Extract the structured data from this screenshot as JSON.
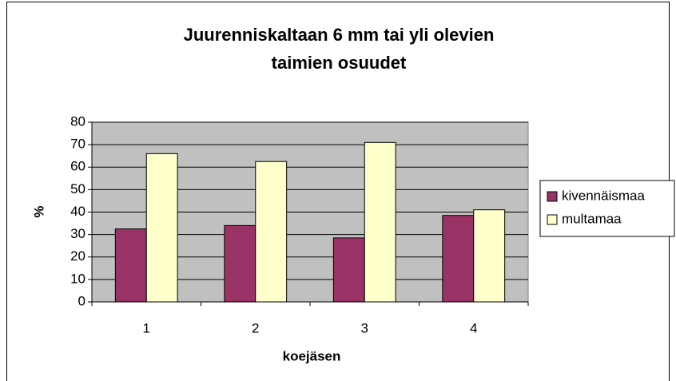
{
  "chart_data": {
    "type": "bar",
    "title": [
      "Juurenniskaltaan 6 mm tai yli olevien",
      "taimien osuudet"
    ],
    "x_label": "koejäsen",
    "y_label": "%",
    "categories": [
      "1",
      "2",
      "3",
      "4"
    ],
    "series": [
      {
        "name": "kivennäismaa",
        "color": "#993366",
        "values": [
          32.5,
          34,
          28.5,
          38.5
        ]
      },
      {
        "name": "multamaa",
        "color": "#ffffcc",
        "values": [
          66,
          62.5,
          71,
          41
        ]
      }
    ],
    "ylim": [
      0,
      80
    ],
    "yticks": [
      0,
      10,
      20,
      30,
      40,
      50,
      60,
      70,
      80
    ],
    "grid": true,
    "legend": "right",
    "plot_background": "#c0c0c0"
  }
}
